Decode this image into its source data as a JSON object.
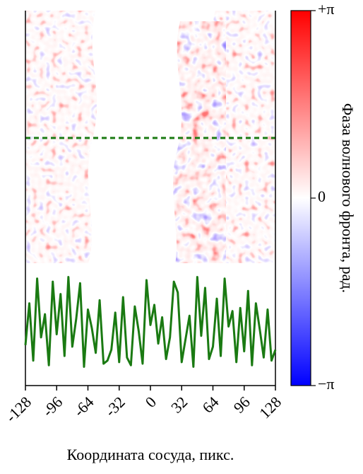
{
  "chart_data": {
    "type": "line",
    "xlabel": "Координата сосуда, пикс.",
    "colorbar_label": "Фаза волнового фронта, рад.",
    "x": [
      -128,
      -124,
      -120,
      -116,
      -112,
      -108,
      -104,
      -100,
      -96,
      -92,
      -88,
      -84,
      -80,
      -76,
      -72,
      -68,
      -64,
      -60,
      -56,
      -52,
      -48,
      -44,
      -40,
      -36,
      -32,
      -28,
      -24,
      -20,
      -16,
      -12,
      -8,
      -4,
      0,
      4,
      8,
      12,
      16,
      20,
      24,
      28,
      32,
      36,
      40,
      44,
      48,
      52,
      56,
      60,
      64,
      68,
      72,
      76,
      80,
      84,
      88,
      92,
      96,
      100,
      104,
      108,
      112,
      116,
      120,
      124,
      128
    ],
    "series": [
      {
        "color": "#1a7a12",
        "values": [
          -1.5,
          1.2,
          -2.5,
          2.8,
          -1.0,
          0.5,
          -2.8,
          2.6,
          -0.8,
          1.8,
          -2.2,
          2.9,
          -1.6,
          0.2,
          2.5,
          -2.9,
          0.8,
          -0.4,
          -2.0,
          1.4,
          -2.7,
          -2.5,
          -1.8,
          0.6,
          -2.6,
          1.6,
          -2.3,
          -2.8,
          1.0,
          -0.6,
          -2.7,
          2.7,
          -0.2,
          1.1,
          -1.4,
          0.3,
          -2.4,
          -1.0,
          2.6,
          1.9,
          -2.6,
          -1.1,
          0.4,
          -2.9,
          2.9,
          -0.9,
          2.2,
          -2.4,
          -1.6,
          1.5,
          -2.2,
          2.8,
          -0.3,
          0.7,
          -2.6,
          0.9,
          -1.9,
          2.0,
          -2.8,
          1.2,
          -0.5,
          -2.3,
          0.8,
          -2.5,
          -1.8
        ]
      }
    ],
    "xlim": [
      -128,
      128
    ],
    "xticks": [
      -128,
      -96,
      -64,
      -32,
      0,
      32,
      64,
      96,
      128
    ],
    "ylim": [
      -3.2,
      3.2
    ],
    "clim": [
      -3.14159,
      3.14159
    ],
    "cticks": [
      {
        "value": 3.14159,
        "label": "+π"
      },
      {
        "value": 0,
        "label": "0"
      },
      {
        "value": -3.14159,
        "label": "−π"
      }
    ]
  }
}
